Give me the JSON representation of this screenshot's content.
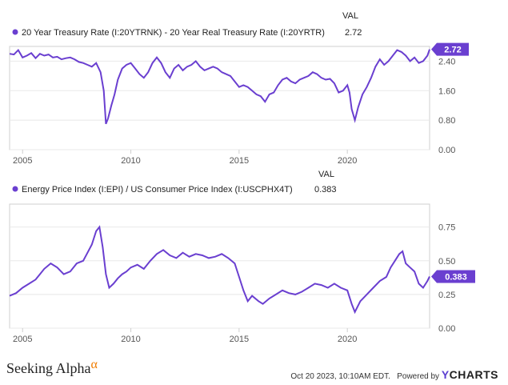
{
  "panels": [
    {
      "val_header": "VAL",
      "series_name": "20 Year Treasury Rate (I:20YTRNK) - 20 Year Real Treasury Rate (I:20YRTR)",
      "series_value": "2.72",
      "badge": "2.72",
      "y_ticks": [
        "0.00",
        "0.80",
        "1.60",
        "2.40"
      ],
      "x_ticks": [
        "2005",
        "2010",
        "2015",
        "2020"
      ]
    },
    {
      "val_header": "VAL",
      "series_name": "Energy Price Index (I:EPI) / US Consumer Price Index (I:USCPHX4T)",
      "series_value": "0.383",
      "badge": "0.383",
      "y_ticks": [
        "0.00",
        "0.25",
        "0.50",
        "0.75"
      ],
      "x_ticks": [
        "2005",
        "2010",
        "2015",
        "2020"
      ]
    }
  ],
  "footer": {
    "brand": "Seeking Alpha",
    "brand_mark": "α",
    "timestamp": "Oct 20 2023, 10:10AM EDT.",
    "powered_by": "Powered by",
    "ycharts_y": "Y",
    "ycharts_rest": "CHARTS"
  },
  "colors": {
    "line": "#6a3fd0",
    "grid": "#e8e8e8",
    "axis": "#cfcfcf"
  },
  "chart_data": [
    {
      "type": "line",
      "ylim": [
        0,
        2.8
      ],
      "xlim": [
        2004.4,
        2023.8
      ],
      "y_ticks": [
        0,
        0.8,
        1.6,
        2.4
      ],
      "x_ticks": [
        2005,
        2010,
        2015,
        2020
      ],
      "grid": true,
      "legend": "top-left",
      "series": [
        {
          "name": "20 Year Treasury Rate (I:20YTRNK) - 20 Year Real Treasury Rate (I:20YRTR)",
          "last_value": 2.72,
          "x": [
            2004.4,
            2004.6,
            2004.8,
            2005.0,
            2005.2,
            2005.4,
            2005.6,
            2005.8,
            2006.0,
            2006.2,
            2006.4,
            2006.6,
            2006.8,
            2007.0,
            2007.2,
            2007.4,
            2007.6,
            2007.8,
            2008.0,
            2008.2,
            2008.4,
            2008.6,
            2008.75,
            2008.85,
            2008.95,
            2009.1,
            2009.25,
            2009.4,
            2009.6,
            2009.8,
            2010.0,
            2010.2,
            2010.4,
            2010.6,
            2010.8,
            2011.0,
            2011.2,
            2011.4,
            2011.6,
            2011.8,
            2012.0,
            2012.2,
            2012.4,
            2012.6,
            2012.8,
            2013.0,
            2013.2,
            2013.4,
            2013.6,
            2013.8,
            2014.0,
            2014.2,
            2014.4,
            2014.6,
            2014.8,
            2015.0,
            2015.2,
            2015.4,
            2015.6,
            2015.8,
            2016.0,
            2016.2,
            2016.4,
            2016.6,
            2016.8,
            2017.0,
            2017.2,
            2017.4,
            2017.6,
            2017.8,
            2018.0,
            2018.2,
            2018.4,
            2018.6,
            2018.8,
            2019.0,
            2019.2,
            2019.4,
            2019.6,
            2019.8,
            2020.0,
            2020.1,
            2020.2,
            2020.35,
            2020.5,
            2020.7,
            2020.9,
            2021.1,
            2021.3,
            2021.5,
            2021.7,
            2021.9,
            2022.1,
            2022.3,
            2022.5,
            2022.7,
            2022.9,
            2023.1,
            2023.3,
            2023.5,
            2023.7,
            2023.8
          ],
          "y": [
            2.6,
            2.58,
            2.7,
            2.5,
            2.55,
            2.62,
            2.48,
            2.6,
            2.55,
            2.58,
            2.5,
            2.52,
            2.45,
            2.48,
            2.5,
            2.45,
            2.38,
            2.35,
            2.3,
            2.25,
            2.35,
            2.1,
            1.6,
            0.7,
            0.85,
            1.2,
            1.5,
            1.9,
            2.2,
            2.3,
            2.35,
            2.2,
            2.05,
            1.95,
            2.1,
            2.35,
            2.5,
            2.35,
            2.1,
            1.95,
            2.2,
            2.3,
            2.15,
            2.25,
            2.3,
            2.4,
            2.25,
            2.15,
            2.2,
            2.25,
            2.2,
            2.1,
            2.05,
            2.0,
            1.85,
            1.7,
            1.75,
            1.7,
            1.6,
            1.5,
            1.45,
            1.3,
            1.5,
            1.55,
            1.75,
            1.9,
            1.95,
            1.85,
            1.8,
            1.9,
            1.95,
            2.0,
            2.1,
            2.05,
            1.95,
            1.9,
            1.92,
            1.8,
            1.55,
            1.6,
            1.75,
            1.55,
            1.1,
            0.8,
            1.15,
            1.5,
            1.7,
            1.95,
            2.25,
            2.45,
            2.3,
            2.4,
            2.55,
            2.7,
            2.65,
            2.55,
            2.4,
            2.5,
            2.35,
            2.4,
            2.55,
            2.72
          ]
        }
      ]
    },
    {
      "type": "line",
      "ylim": [
        0,
        0.92
      ],
      "xlim": [
        2004.4,
        2023.8
      ],
      "y_ticks": [
        0,
        0.25,
        0.5,
        0.75
      ],
      "x_ticks": [
        2005,
        2010,
        2015,
        2020
      ],
      "grid": true,
      "legend": "top-left",
      "series": [
        {
          "name": "Energy Price Index (I:EPI) / US Consumer Price Index (I:USCPHX4T)",
          "last_value": 0.383,
          "x": [
            2004.4,
            2004.7,
            2005.0,
            2005.3,
            2005.6,
            2005.8,
            2006.0,
            2006.3,
            2006.6,
            2006.9,
            2007.2,
            2007.5,
            2007.8,
            2008.0,
            2008.2,
            2008.4,
            2008.55,
            2008.7,
            2008.85,
            2009.0,
            2009.2,
            2009.4,
            2009.6,
            2009.8,
            2010.0,
            2010.3,
            2010.6,
            2010.9,
            2011.2,
            2011.5,
            2011.8,
            2012.1,
            2012.4,
            2012.7,
            2013.0,
            2013.3,
            2013.6,
            2013.9,
            2014.2,
            2014.5,
            2014.8,
            2015.0,
            2015.2,
            2015.4,
            2015.6,
            2015.9,
            2016.1,
            2016.4,
            2016.7,
            2017.0,
            2017.3,
            2017.6,
            2017.9,
            2018.2,
            2018.5,
            2018.8,
            2019.1,
            2019.4,
            2019.7,
            2020.0,
            2020.2,
            2020.35,
            2020.6,
            2020.9,
            2021.2,
            2021.5,
            2021.8,
            2022.0,
            2022.2,
            2022.4,
            2022.55,
            2022.7,
            2022.9,
            2023.1,
            2023.3,
            2023.5,
            2023.7,
            2023.8
          ],
          "y": [
            0.24,
            0.26,
            0.3,
            0.33,
            0.36,
            0.4,
            0.44,
            0.48,
            0.45,
            0.4,
            0.42,
            0.48,
            0.5,
            0.56,
            0.62,
            0.72,
            0.75,
            0.6,
            0.4,
            0.3,
            0.33,
            0.37,
            0.4,
            0.42,
            0.45,
            0.47,
            0.44,
            0.5,
            0.55,
            0.58,
            0.54,
            0.52,
            0.56,
            0.53,
            0.55,
            0.54,
            0.52,
            0.53,
            0.55,
            0.52,
            0.48,
            0.38,
            0.28,
            0.2,
            0.24,
            0.2,
            0.18,
            0.22,
            0.25,
            0.28,
            0.26,
            0.25,
            0.27,
            0.3,
            0.33,
            0.32,
            0.3,
            0.33,
            0.3,
            0.28,
            0.18,
            0.12,
            0.2,
            0.25,
            0.3,
            0.35,
            0.38,
            0.45,
            0.5,
            0.55,
            0.57,
            0.48,
            0.45,
            0.42,
            0.33,
            0.3,
            0.35,
            0.383
          ]
        }
      ]
    }
  ]
}
